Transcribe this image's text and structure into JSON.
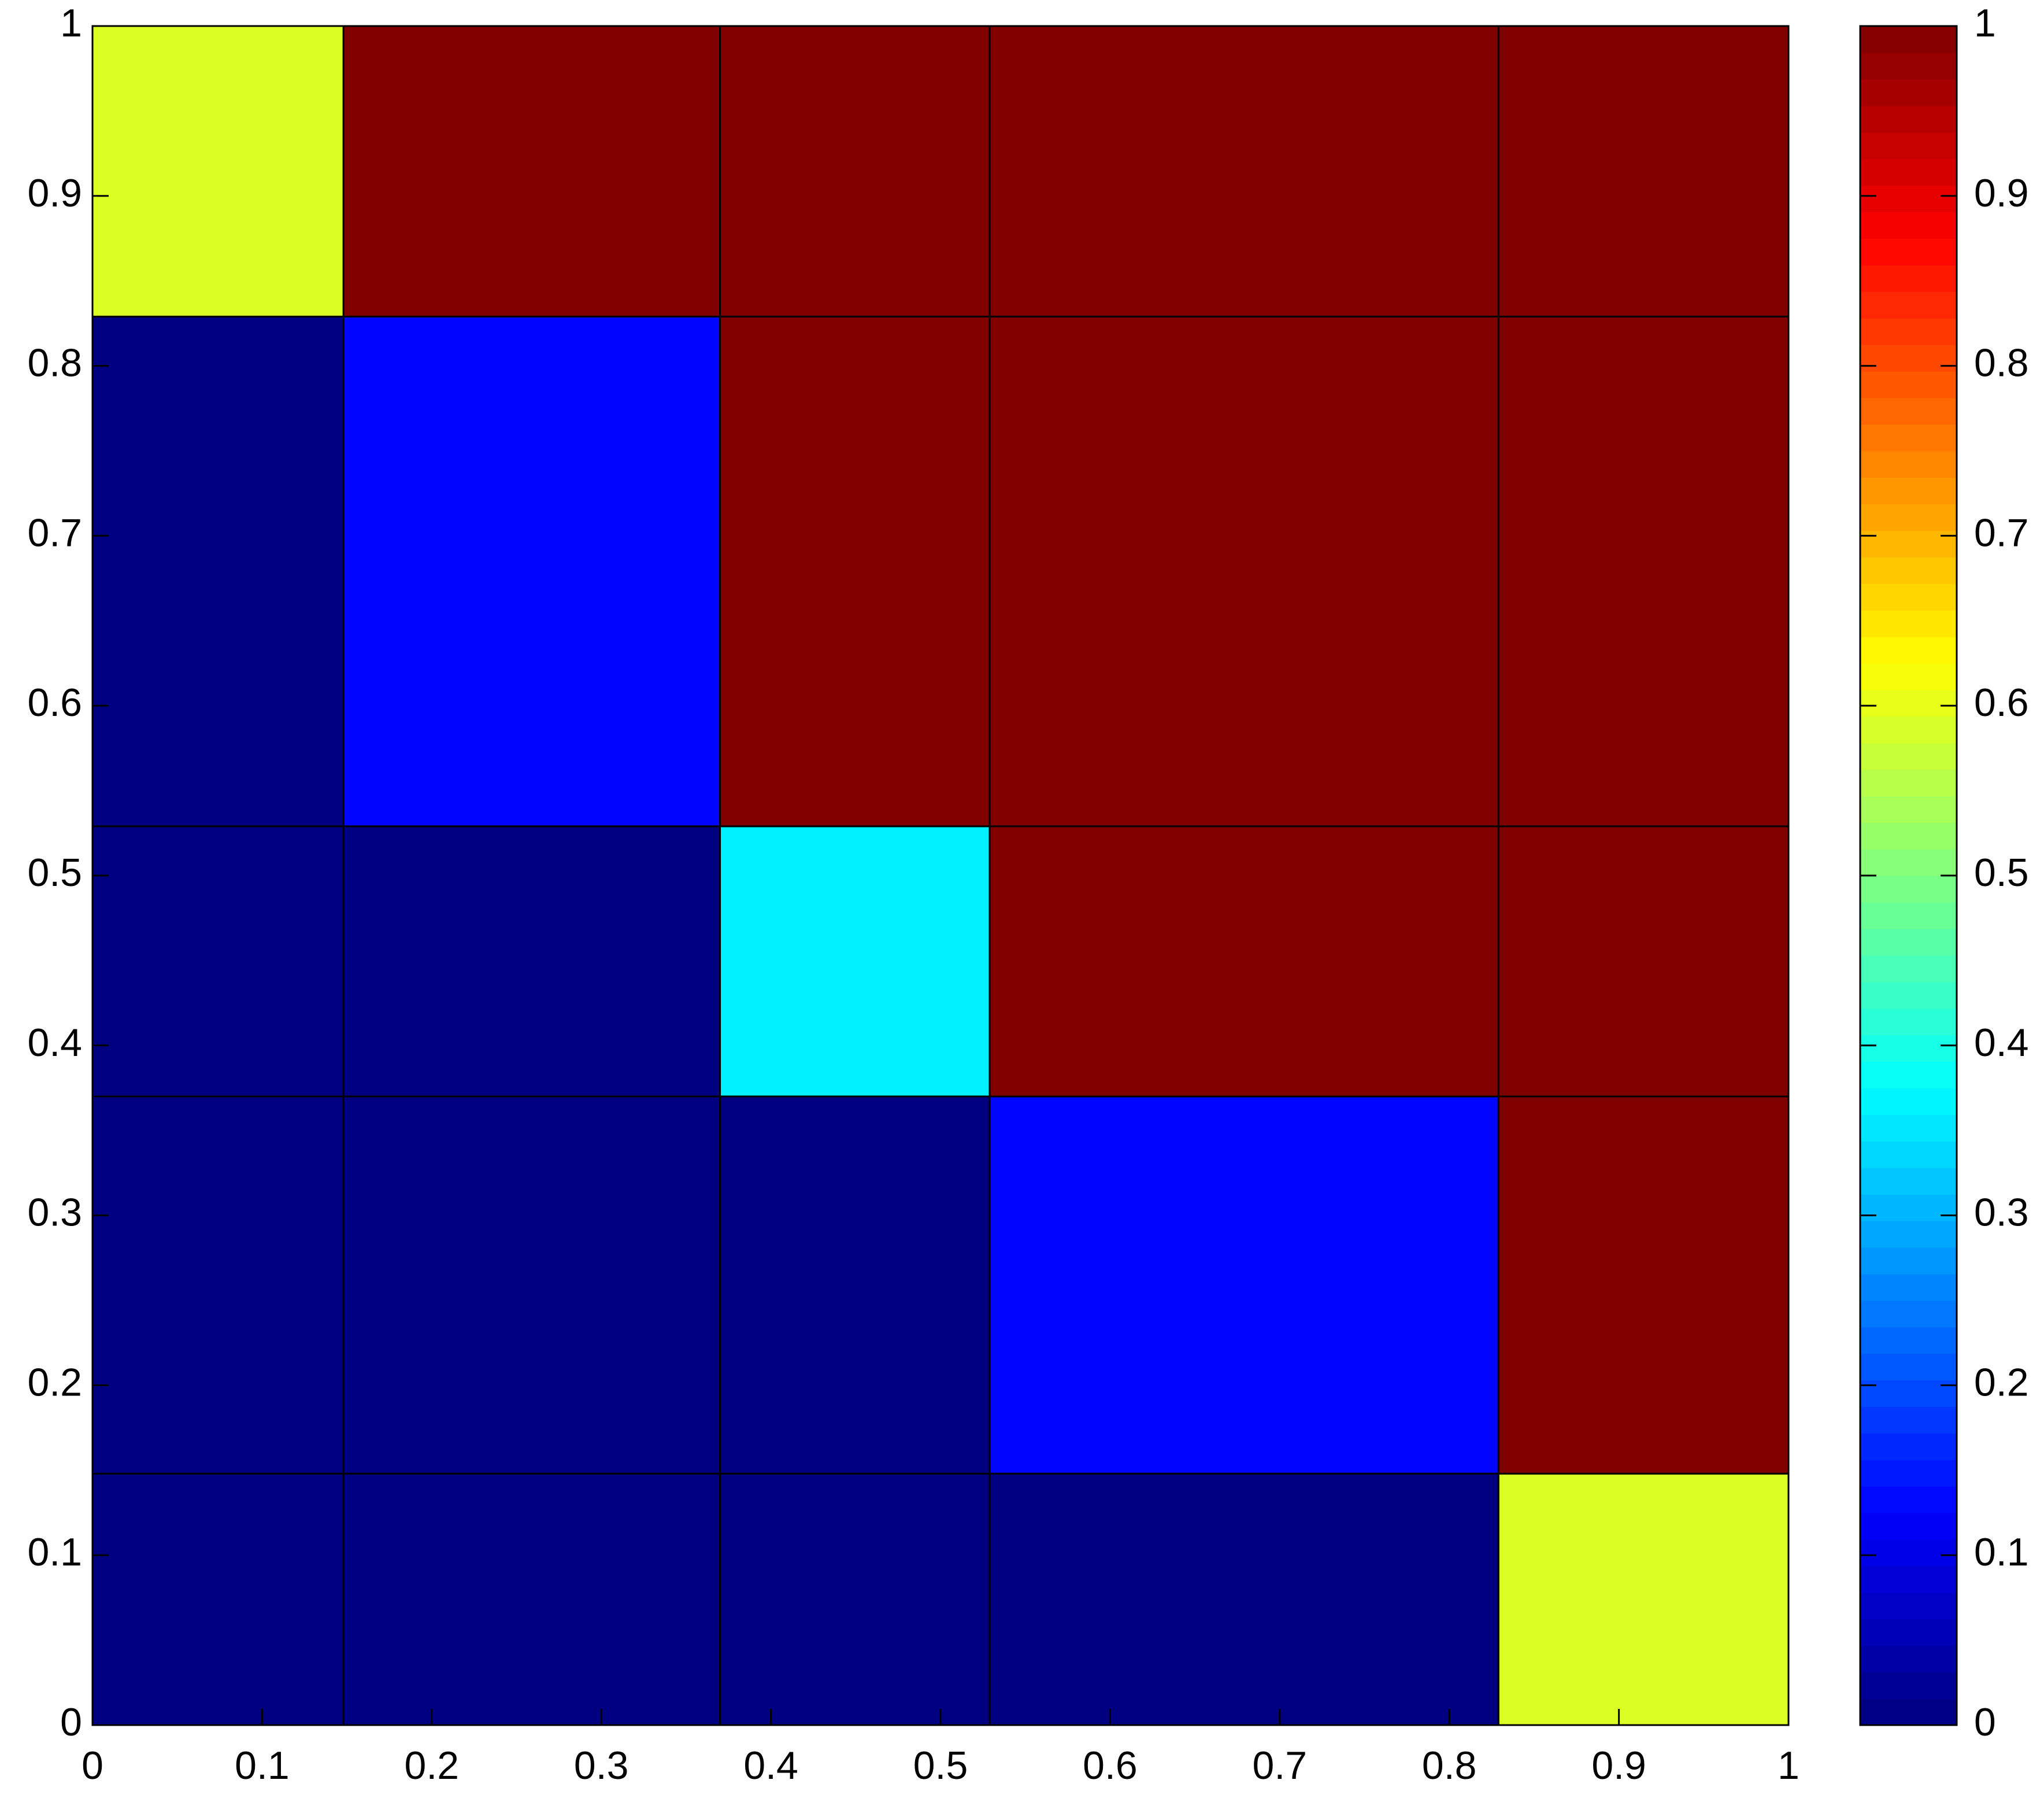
{
  "chart_data": {
    "type": "heatmap",
    "x_edges": [
      0,
      0.148,
      0.37,
      0.529,
      0.829,
      1
    ],
    "y_edges": [
      0,
      0.148,
      0.37,
      0.529,
      0.829,
      1
    ],
    "z": [
      [
        0,
        0,
        0,
        0,
        0.59
      ],
      [
        0,
        0,
        0,
        0.13,
        1
      ],
      [
        0,
        0,
        0.36,
        1,
        1
      ],
      [
        0,
        0.13,
        1,
        1,
        1
      ],
      [
        0.59,
        1,
        1,
        1,
        1
      ]
    ],
    "colormap": "jet",
    "xlim": [
      0,
      1
    ],
    "ylim": [
      0,
      1
    ],
    "xticks": [
      0,
      0.1,
      0.2,
      0.3,
      0.4,
      0.5,
      0.6,
      0.7,
      0.8,
      0.9,
      1
    ],
    "yticks": [
      0,
      0.1,
      0.2,
      0.3,
      0.4,
      0.5,
      0.6,
      0.7,
      0.8,
      0.9,
      1
    ],
    "colorbar": {
      "clim": [
        0,
        1
      ],
      "ticks": [
        0,
        0.1,
        0.2,
        0.3,
        0.4,
        0.5,
        0.6,
        0.7,
        0.8,
        0.9,
        1
      ]
    }
  }
}
